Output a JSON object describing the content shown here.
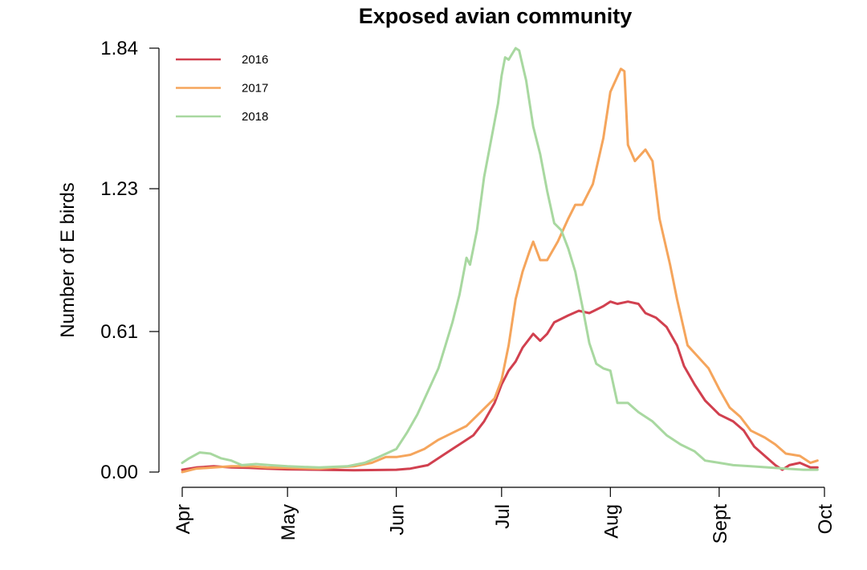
{
  "chart_data": {
    "type": "line",
    "title": "Exposed avian community",
    "xlabel": "",
    "ylabel": "Number of E birds",
    "xlim": [
      "Apr",
      "Oct"
    ],
    "ylim": [
      0,
      1.84
    ],
    "x_ticks": [
      "Apr",
      "May",
      "Jun",
      "Jul",
      "Aug",
      "Sept",
      "Oct"
    ],
    "y_ticks": [
      "0.00",
      "0.61",
      "1.23",
      "1.84"
    ],
    "grid": false,
    "legend_position": "top-left",
    "series": [
      {
        "name": "2016",
        "color": "#d1404f",
        "points": [
          [
            "Apr 1",
            0.01
          ],
          [
            "Apr 5",
            0.02
          ],
          [
            "Apr 10",
            0.025
          ],
          [
            "Apr 15",
            0.02
          ],
          [
            "Apr 20",
            0.018
          ],
          [
            "Apr 25",
            0.015
          ],
          [
            "May 1",
            0.012
          ],
          [
            "May 10",
            0.01
          ],
          [
            "May 20",
            0.008
          ],
          [
            "Jun 1",
            0.01
          ],
          [
            "Jun 5",
            0.015
          ],
          [
            "Jun 10",
            0.03
          ],
          [
            "Jun 13",
            0.06
          ],
          [
            "Jun 17",
            0.1
          ],
          [
            "Jun 20",
            0.13
          ],
          [
            "Jun 23",
            0.16
          ],
          [
            "Jun 26",
            0.22
          ],
          [
            "Jun 29",
            0.3
          ],
          [
            "Jul 1",
            0.38
          ],
          [
            "Jul 3",
            0.44
          ],
          [
            "Jul 5",
            0.48
          ],
          [
            "Jul 7",
            0.54
          ],
          [
            "Jul 10",
            0.6
          ],
          [
            "Jul 12",
            0.57
          ],
          [
            "Jul 14",
            0.6
          ],
          [
            "Jul 16",
            0.65
          ],
          [
            "Jul 20",
            0.68
          ],
          [
            "Jul 23",
            0.7
          ],
          [
            "Jul 26",
            0.69
          ],
          [
            "Jul 30",
            0.72
          ],
          [
            "Aug 1",
            0.74
          ],
          [
            "Aug 3",
            0.73
          ],
          [
            "Aug 6",
            0.74
          ],
          [
            "Aug 9",
            0.73
          ],
          [
            "Aug 11",
            0.69
          ],
          [
            "Aug 14",
            0.67
          ],
          [
            "Aug 17",
            0.63
          ],
          [
            "Aug 20",
            0.55
          ],
          [
            "Aug 22",
            0.46
          ],
          [
            "Aug 25",
            0.38
          ],
          [
            "Aug 28",
            0.31
          ],
          [
            "Sep 1",
            0.25
          ],
          [
            "Sep 5",
            0.22
          ],
          [
            "Sep 8",
            0.18
          ],
          [
            "Sep 11",
            0.11
          ],
          [
            "Sep 14",
            0.07
          ],
          [
            "Sep 17",
            0.03
          ],
          [
            "Sep 19",
            0.01
          ],
          [
            "Sep 21",
            0.03
          ],
          [
            "Sep 24",
            0.04
          ],
          [
            "Sep 27",
            0.02
          ],
          [
            "Sep 29",
            0.02
          ]
        ]
      },
      {
        "name": "2017",
        "color": "#f5a55c",
        "points": [
          [
            "Apr 1",
            0.0
          ],
          [
            "Apr 5",
            0.015
          ],
          [
            "Apr 10",
            0.02
          ],
          [
            "Apr 15",
            0.025
          ],
          [
            "Apr 20",
            0.025
          ],
          [
            "Apr 25",
            0.02
          ],
          [
            "May 1",
            0.018
          ],
          [
            "May 10",
            0.015
          ],
          [
            "May 20",
            0.025
          ],
          [
            "May 25",
            0.04
          ],
          [
            "May 29",
            0.065
          ],
          [
            "Jun 1",
            0.065
          ],
          [
            "Jun 5",
            0.075
          ],
          [
            "Jun 9",
            0.1
          ],
          [
            "Jun 13",
            0.14
          ],
          [
            "Jun 17",
            0.17
          ],
          [
            "Jun 21",
            0.2
          ],
          [
            "Jun 25",
            0.26
          ],
          [
            "Jun 29",
            0.32
          ],
          [
            "Jul 1",
            0.4
          ],
          [
            "Jul 3",
            0.55
          ],
          [
            "Jul 5",
            0.75
          ],
          [
            "Jul 7",
            0.87
          ],
          [
            "Jul 9",
            0.96
          ],
          [
            "Jul 10",
            1.0
          ],
          [
            "Jul 12",
            0.92
          ],
          [
            "Jul 14",
            0.92
          ],
          [
            "Jul 17",
            1.0
          ],
          [
            "Jul 20",
            1.1
          ],
          [
            "Jul 22",
            1.16
          ],
          [
            "Jul 24",
            1.16
          ],
          [
            "Jul 27",
            1.25
          ],
          [
            "Jul 30",
            1.45
          ],
          [
            "Aug 1",
            1.65
          ],
          [
            "Aug 4",
            1.75
          ],
          [
            "Aug 5",
            1.74
          ],
          [
            "Aug 6",
            1.42
          ],
          [
            "Aug 8",
            1.35
          ],
          [
            "Aug 11",
            1.4
          ],
          [
            "Aug 13",
            1.35
          ],
          [
            "Aug 15",
            1.1
          ],
          [
            "Aug 18",
            0.9
          ],
          [
            "Aug 20",
            0.75
          ],
          [
            "Aug 23",
            0.55
          ],
          [
            "Aug 26",
            0.5
          ],
          [
            "Aug 29",
            0.45
          ],
          [
            "Sep 1",
            0.36
          ],
          [
            "Sep 4",
            0.28
          ],
          [
            "Sep 7",
            0.24
          ],
          [
            "Sep 10",
            0.18
          ],
          [
            "Sep 14",
            0.15
          ],
          [
            "Sep 17",
            0.12
          ],
          [
            "Sep 20",
            0.08
          ],
          [
            "Sep 24",
            0.07
          ],
          [
            "Sep 27",
            0.04
          ],
          [
            "Sep 29",
            0.05
          ]
        ]
      },
      {
        "name": "2018",
        "color": "#a8d8a0",
        "points": [
          [
            "Apr 1",
            0.04
          ],
          [
            "Apr 3",
            0.06
          ],
          [
            "Apr 6",
            0.085
          ],
          [
            "Apr 9",
            0.08
          ],
          [
            "Apr 12",
            0.06
          ],
          [
            "Apr 15",
            0.05
          ],
          [
            "Apr 18",
            0.03
          ],
          [
            "Apr 22",
            0.035
          ],
          [
            "Apr 26",
            0.03
          ],
          [
            "May 1",
            0.025
          ],
          [
            "May 10",
            0.02
          ],
          [
            "May 18",
            0.025
          ],
          [
            "May 23",
            0.04
          ],
          [
            "May 27",
            0.065
          ],
          [
            "Jun 1",
            0.1
          ],
          [
            "Jun 4",
            0.17
          ],
          [
            "Jun 7",
            0.25
          ],
          [
            "Jun 10",
            0.35
          ],
          [
            "Jun 13",
            0.45
          ],
          [
            "Jun 15",
            0.55
          ],
          [
            "Jun 17",
            0.65
          ],
          [
            "Jun 19",
            0.77
          ],
          [
            "Jun 21",
            0.93
          ],
          [
            "Jun 22",
            0.9
          ],
          [
            "Jun 24",
            1.05
          ],
          [
            "Jun 26",
            1.28
          ],
          [
            "Jun 28",
            1.44
          ],
          [
            "Jun 30",
            1.6
          ],
          [
            "Jul 1",
            1.72
          ],
          [
            "Jul 2",
            1.8
          ],
          [
            "Jul 3",
            1.79
          ],
          [
            "Jul 5",
            1.84
          ],
          [
            "Jul 6",
            1.83
          ],
          [
            "Jul 8",
            1.7
          ],
          [
            "Jul 10",
            1.5
          ],
          [
            "Jul 12",
            1.38
          ],
          [
            "Jul 14",
            1.22
          ],
          [
            "Jul 16",
            1.08
          ],
          [
            "Jul 18",
            1.05
          ],
          [
            "Jul 20",
            0.97
          ],
          [
            "Jul 22",
            0.87
          ],
          [
            "Jul 24",
            0.72
          ],
          [
            "Jul 26",
            0.56
          ],
          [
            "Jul 28",
            0.47
          ],
          [
            "Jul 30",
            0.45
          ],
          [
            "Aug 1",
            0.44
          ],
          [
            "Aug 3",
            0.3
          ],
          [
            "Aug 6",
            0.3
          ],
          [
            "Aug 9",
            0.26
          ],
          [
            "Aug 13",
            0.22
          ],
          [
            "Aug 17",
            0.16
          ],
          [
            "Aug 21",
            0.12
          ],
          [
            "Aug 25",
            0.09
          ],
          [
            "Aug 28",
            0.05
          ],
          [
            "Sep 1",
            0.04
          ],
          [
            "Sep 5",
            0.03
          ],
          [
            "Sep 10",
            0.025
          ],
          [
            "Sep 15",
            0.02
          ],
          [
            "Sep 20",
            0.015
          ],
          [
            "Sep 25",
            0.01
          ],
          [
            "Sep 29",
            0.01
          ]
        ]
      }
    ]
  }
}
